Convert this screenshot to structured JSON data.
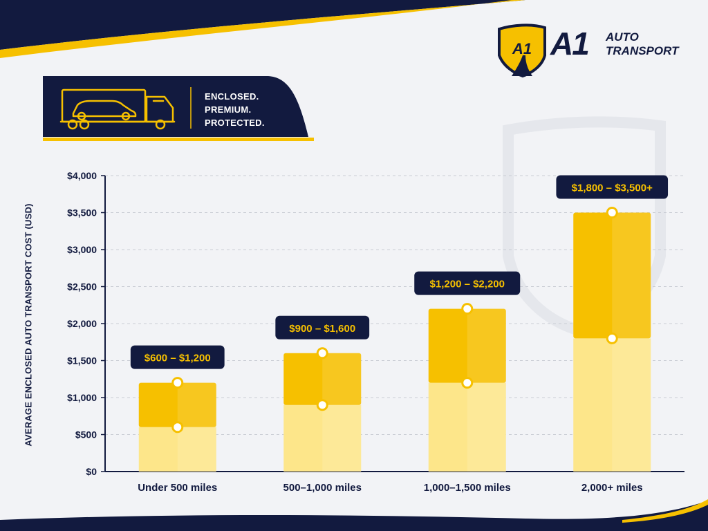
{
  "brand": {
    "logo_mark": "A1",
    "name_a1": "A1",
    "name_line1": "AUTO",
    "name_line2": "TRANSPORT",
    "shield_icon": "shield-road-icon"
  },
  "badge": {
    "icon": "car-carrier-truck-icon",
    "lines": [
      "ENCLOSED.",
      "PREMIUM.",
      "PROTECTED."
    ]
  },
  "colors": {
    "navy": "#121a3f",
    "gold": "#f6c000",
    "gold_light": "#fde68a",
    "background": "#f2f3f6"
  },
  "chart_data": {
    "type": "bar",
    "title": "",
    "ylabel": "AVERAGE ENCLOSED AUTO TRANSPORT COST (USD)",
    "xlabel": "",
    "ylim": [
      0,
      4000
    ],
    "yticks": [
      0,
      500,
      1000,
      1500,
      2000,
      2500,
      3000,
      3500,
      4000
    ],
    "ytick_labels": [
      "$0",
      "$500",
      "$1,000",
      "$1,500",
      "$2,000",
      "$2,500",
      "$3,000",
      "$3,500",
      "$4,000"
    ],
    "grid": true,
    "categories": [
      "Under 500 miles",
      "500–1,000 miles",
      "1,000–1,500 miles",
      "2,000+ miles"
    ],
    "series": [
      {
        "values": [
          600,
          900,
          1200,
          1800
        ]
      },
      {
        "values": [
          1200,
          1600,
          2200,
          3500
        ]
      }
    ],
    "data_labels": [
      "$600 – $1,200",
      "$900 – $1,600",
      "$1,200 – $2,200",
      "$1,800 – $3,500+"
    ]
  }
}
